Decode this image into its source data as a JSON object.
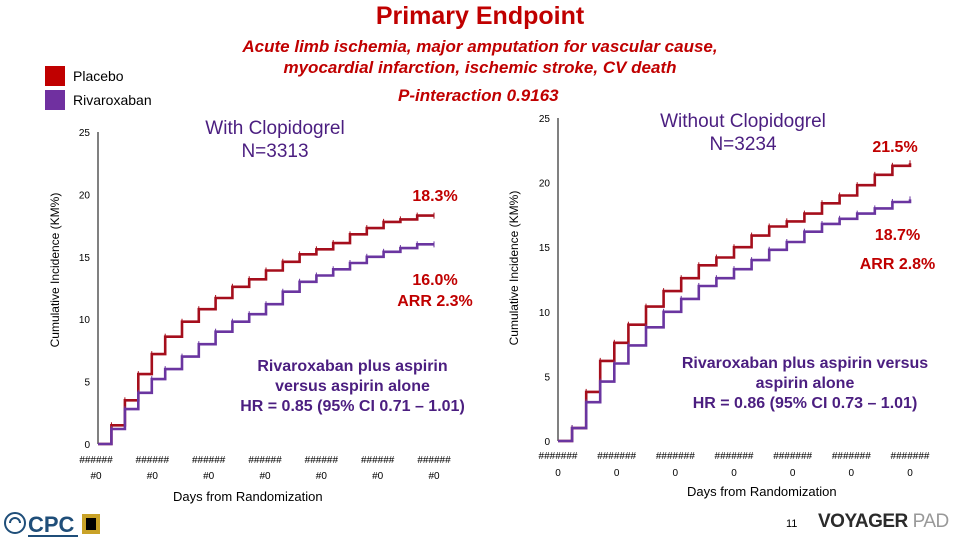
{
  "title": "Primary Endpoint",
  "subtitle_line1": "Acute limb ischemia, major amputation for vascular cause,",
  "subtitle_line2": "myocardial infarction, ischemic stroke, CV death",
  "p_interaction": "P-interaction 0.9163",
  "legend": [
    {
      "label": "Placebo",
      "color": "#c00000"
    },
    {
      "label": "Rivaroxaban",
      "color": "#7030a0"
    }
  ],
  "colors": {
    "placebo": "#a50e1c",
    "rivaroxaban": "#6a35a0",
    "axis": "#000000"
  },
  "page_number": "11",
  "brand": {
    "word1": "VOYAGER",
    "word2": "PAD"
  },
  "footer_logo_text": "CPC",
  "chart_data": [
    {
      "type": "line",
      "title_line1": "With Clopidogrel",
      "title_line2": "N=3313",
      "ylabel": "Cumulative Incidence (KM%)",
      "xlabel": "Days from Randomization",
      "ylim": [
        0,
        25
      ],
      "yticks": [
        "0",
        "5",
        "10",
        "15",
        "20",
        "25"
      ],
      "xtick_top": [
        "######",
        "######",
        "######",
        "######",
        "######",
        "######",
        "######"
      ],
      "xtick_bottom": [
        "#0",
        "#0",
        "#0",
        "#0",
        "#0",
        "#0",
        "#0"
      ],
      "placebo_label": "18.3%",
      "riva_label": "16.0%",
      "arr_label": "ARR 2.3%",
      "hr_line1": "Rivaroxaban plus aspirin",
      "hr_line2": "versus aspirin alone",
      "hr_line3": "HR = 0.85 (95% CI 0.71 – 1.01)",
      "series": [
        {
          "key": "placebo",
          "x": [
            0,
            0.04,
            0.08,
            0.12,
            0.16,
            0.2,
            0.25,
            0.3,
            0.35,
            0.4,
            0.45,
            0.5,
            0.55,
            0.6,
            0.65,
            0.7,
            0.75,
            0.8,
            0.85,
            0.9,
            0.95,
            1.0
          ],
          "values": [
            0,
            1.5,
            3.5,
            5.6,
            7.2,
            8.6,
            9.8,
            10.8,
            11.7,
            12.6,
            13.2,
            13.9,
            14.6,
            15.2,
            15.6,
            16.1,
            16.8,
            17.3,
            17.8,
            18.0,
            18.3,
            18.3
          ]
        },
        {
          "key": "rivaroxaban",
          "x": [
            0,
            0.04,
            0.08,
            0.12,
            0.16,
            0.2,
            0.25,
            0.3,
            0.35,
            0.4,
            0.45,
            0.5,
            0.55,
            0.6,
            0.65,
            0.7,
            0.75,
            0.8,
            0.85,
            0.9,
            0.95,
            1.0
          ],
          "values": [
            0,
            1.2,
            2.8,
            4.1,
            5.2,
            6.0,
            7.0,
            8.0,
            9.0,
            9.8,
            10.4,
            11.2,
            12.2,
            13.0,
            13.5,
            14.0,
            14.5,
            15.0,
            15.4,
            15.7,
            16.0,
            16.0
          ]
        }
      ]
    },
    {
      "type": "line",
      "title_line1": "Without Clopidogrel",
      "title_line2": "N=3234",
      "ylabel": "Cumulative Incidence (KM%)",
      "xlabel": "Days from Randomization",
      "ylim": [
        0,
        25
      ],
      "yticks": [
        "0",
        "5",
        "10",
        "15",
        "20",
        "25"
      ],
      "xtick_top": [
        "#######",
        "#######",
        "#######",
        "#######",
        "#######",
        "#######",
        "#######"
      ],
      "xtick_bottom": [
        "0",
        "0",
        "0",
        "0",
        "0",
        "0",
        "0"
      ],
      "placebo_label": "21.5%",
      "riva_label": "18.7%",
      "arr_label": "ARR 2.8%",
      "hr_line1": "Rivaroxaban plus aspirin versus",
      "hr_line2": "aspirin alone",
      "hr_line3": "HR = 0.86 (95% CI 0.73 – 1.01)",
      "series": [
        {
          "key": "placebo",
          "x": [
            0,
            0.04,
            0.08,
            0.12,
            0.16,
            0.2,
            0.25,
            0.3,
            0.35,
            0.4,
            0.45,
            0.5,
            0.55,
            0.6,
            0.65,
            0.7,
            0.75,
            0.8,
            0.85,
            0.9,
            0.95,
            1.0
          ],
          "values": [
            0,
            1.0,
            3.8,
            6.2,
            7.6,
            9.0,
            10.4,
            11.6,
            12.6,
            13.6,
            14.2,
            15.0,
            15.9,
            16.6,
            17.0,
            17.6,
            18.4,
            19.0,
            19.8,
            20.6,
            21.3,
            21.5
          ]
        },
        {
          "key": "rivaroxaban",
          "x": [
            0,
            0.04,
            0.08,
            0.12,
            0.16,
            0.2,
            0.25,
            0.3,
            0.35,
            0.4,
            0.45,
            0.5,
            0.55,
            0.6,
            0.65,
            0.7,
            0.75,
            0.8,
            0.85,
            0.9,
            0.95,
            1.0
          ],
          "values": [
            0,
            1.0,
            3.0,
            4.6,
            6.0,
            7.4,
            8.8,
            10.0,
            11.0,
            12.0,
            12.6,
            13.3,
            14.0,
            14.8,
            15.4,
            16.2,
            16.8,
            17.2,
            17.6,
            18.0,
            18.5,
            18.7
          ]
        }
      ]
    }
  ]
}
